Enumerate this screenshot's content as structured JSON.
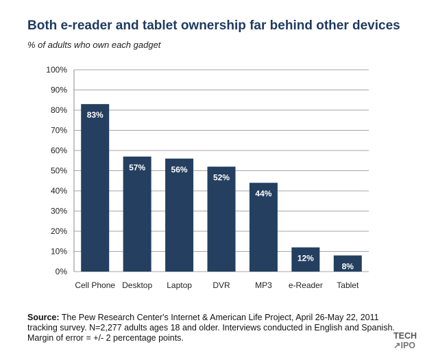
{
  "title": "Both e-reader and tablet ownership far behind other devices",
  "subtitle": "% of adults who own each gadget",
  "source": {
    "label": "Source:",
    "text": " The Pew Research Center's Internet & American Life Project, April 26-May 22, 2011 tracking survey. N=2,277 adults ages 18 and older. Interviews conducted in English and Spanish. Margin of error = +/- 2 percentage points."
  },
  "logo": {
    "line1": "TECH",
    "line2": "↗IPO"
  },
  "colors": {
    "bar": "#243f60",
    "bar_label": "#ffffff",
    "grid": "#a6a6a6",
    "title": "#1f3a5f"
  },
  "chart_data": {
    "type": "bar",
    "categories": [
      "Cell Phone",
      "Desktop",
      "Laptop",
      "DVR",
      "MP3",
      "e-Reader",
      "Tablet"
    ],
    "values": [
      83,
      57,
      56,
      52,
      44,
      12,
      8
    ],
    "data_labels": [
      "83%",
      "57%",
      "56%",
      "52%",
      "44%",
      "12%",
      "8%"
    ],
    "title": "Both e-reader and tablet ownership far behind other devices",
    "subtitle": "% of adults who own each gadget",
    "xlabel": "",
    "ylabel": "",
    "ylim": [
      0,
      100
    ],
    "y_ticks": [
      0,
      10,
      20,
      30,
      40,
      50,
      60,
      70,
      80,
      90,
      100
    ],
    "y_tick_labels": [
      "0%",
      "10%",
      "20%",
      "30%",
      "40%",
      "50%",
      "60%",
      "70%",
      "80%",
      "90%",
      "100%"
    ],
    "grid": true,
    "legend": "none"
  }
}
